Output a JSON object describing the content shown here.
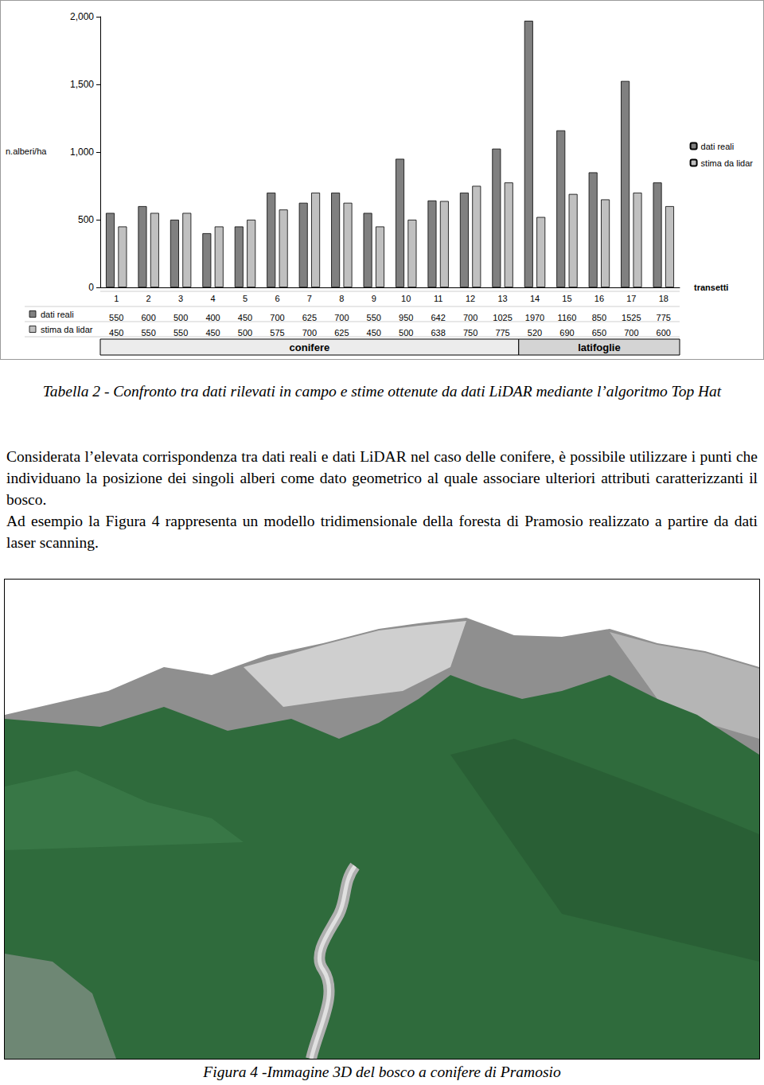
{
  "chart_data": {
    "type": "bar",
    "categories": [
      "1",
      "2",
      "3",
      "4",
      "5",
      "6",
      "7",
      "8",
      "9",
      "10",
      "11",
      "12",
      "13",
      "14",
      "15",
      "16",
      "17",
      "18"
    ],
    "x_label": "transetti",
    "y_label": "n.alberi/ha",
    "series": [
      {
        "name": "dati reali",
        "color": "#808080",
        "values": [
          550,
          600,
          500,
          400,
          450,
          700,
          625,
          700,
          550,
          950,
          642,
          700,
          1025,
          1970,
          1160,
          850,
          1525,
          775
        ]
      },
      {
        "name": "stima da lidar",
        "color": "#c0c0c0",
        "values": [
          450,
          550,
          550,
          450,
          500,
          575,
          700,
          625,
          450,
          500,
          638,
          750,
          775,
          520,
          690,
          650,
          700,
          600
        ]
      }
    ],
    "ylim": [
      0,
      2000
    ],
    "yticks": [
      0,
      500,
      1000,
      1500,
      2000
    ],
    "grid": false,
    "legend": "right",
    "groups": [
      {
        "label": "conifere",
        "from": "1",
        "to": "13"
      },
      {
        "label": "latifoglie",
        "from": "14",
        "to": "18"
      }
    ]
  },
  "table_caption": "Tabella 2 - Confronto tra dati rilevati in campo e stime ottenute da dati LiDAR mediante l’algoritmo Top Hat",
  "paragraphs": [
    "Considerata l’elevata corrispondenza tra dati reali e dati LiDAR nel caso delle conifere, è possibile utilizzare i punti che individuano la posizione dei singoli alberi come dato geometrico al quale associare ulteriori attributi caratterizzanti il bosco.",
    "Ad esempio la Figura 4 rappresenta un modello tridimensionale della foresta di Pramosio realizzato a partire da dati laser scanning."
  ],
  "figure_caption": "Figura 4 -Immagine 3D del bosco a conifere di Pramosio"
}
